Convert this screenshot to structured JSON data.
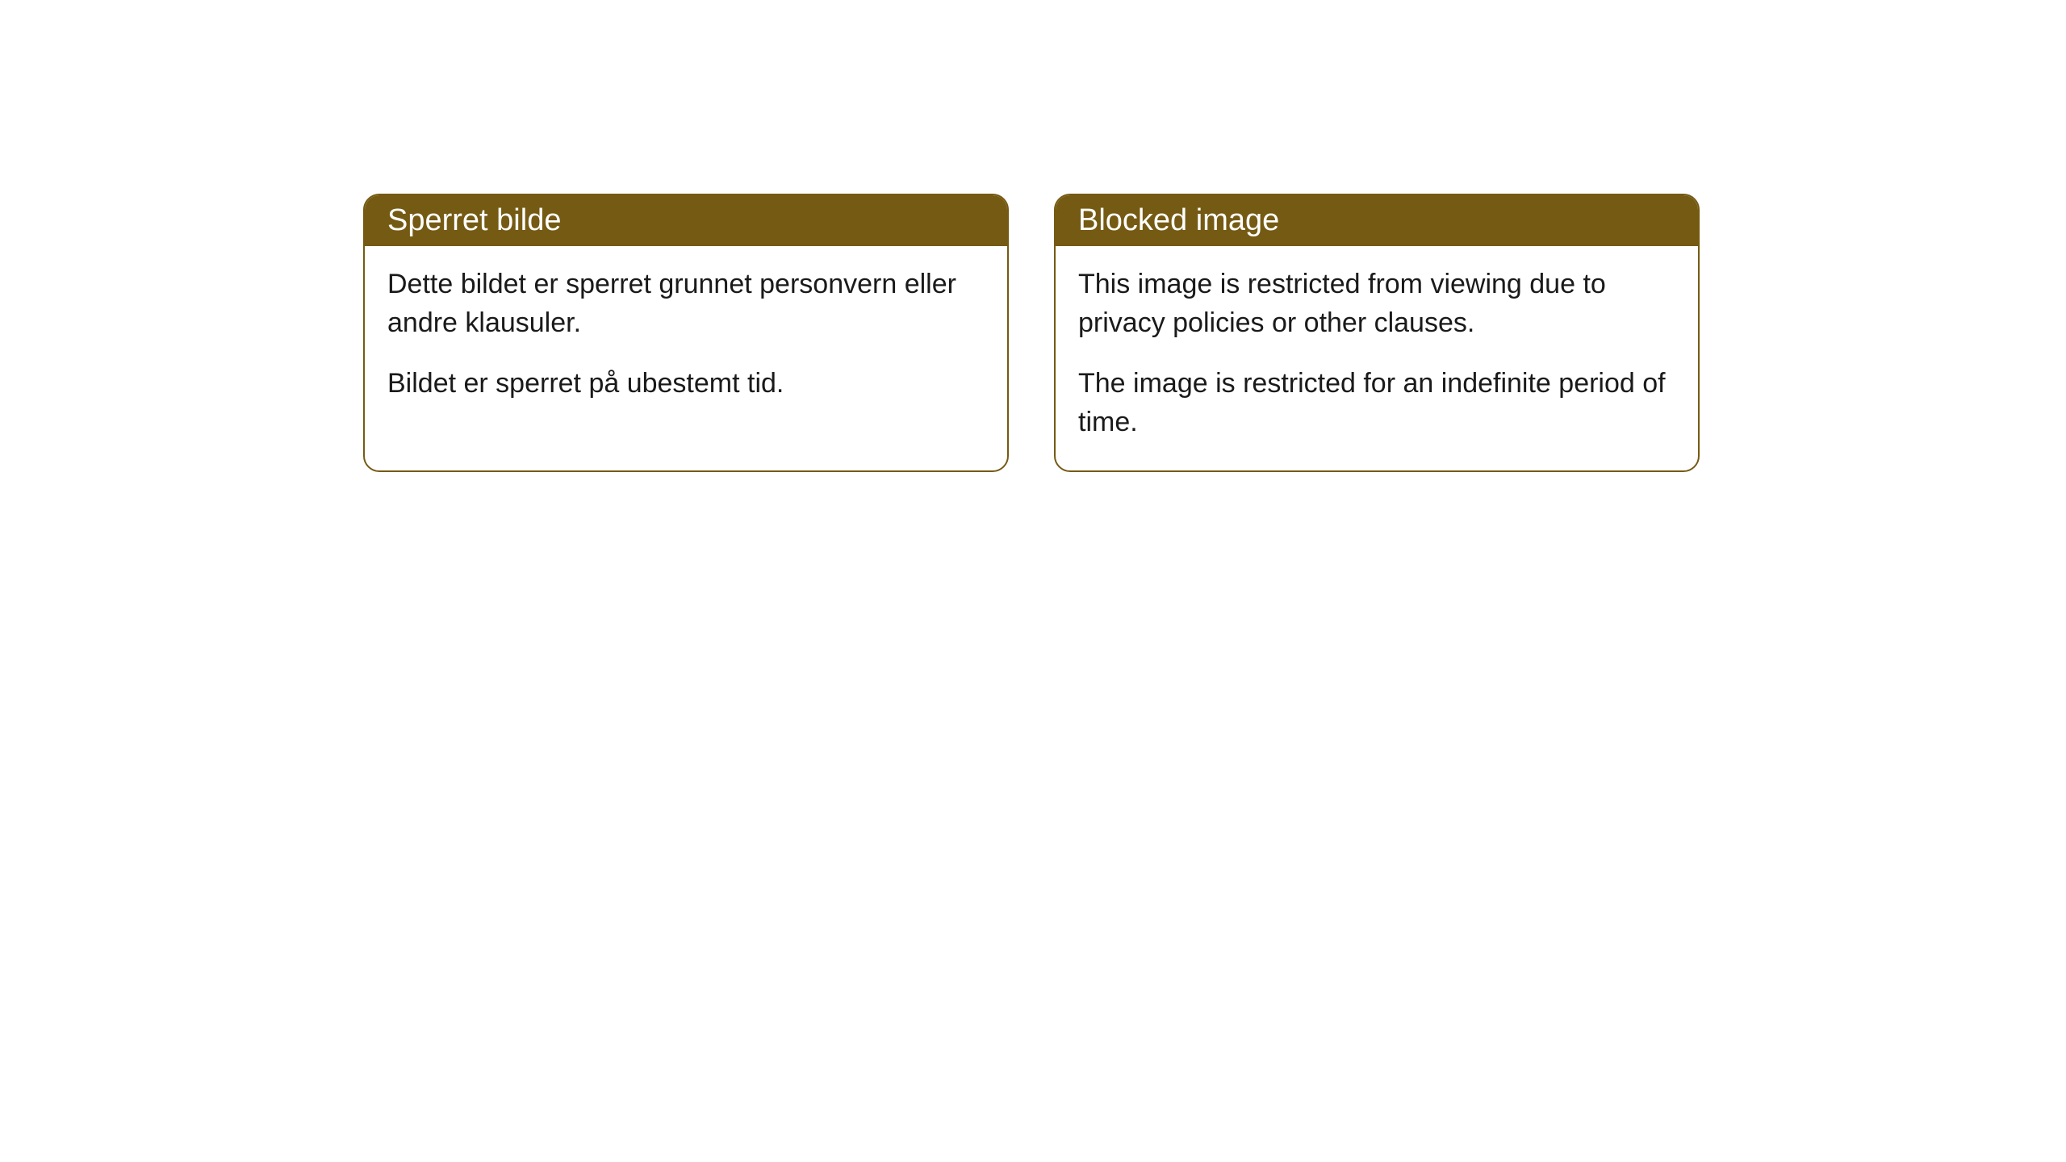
{
  "cards": [
    {
      "title": "Sperret bilde",
      "paragraph1": "Dette bildet er sperret grunnet personvern eller andre klausuler.",
      "paragraph2": "Bildet er sperret på ubestemt tid."
    },
    {
      "title": "Blocked image",
      "paragraph1": "This image is restricted from viewing due to privacy policies or other clauses.",
      "paragraph2": "The image is restricted for an indefinite period of time."
    }
  ],
  "styling": {
    "header_background": "#755a13",
    "header_text_color": "#ffffff",
    "border_color": "#755a13",
    "body_background": "#ffffff",
    "body_text_color": "#1a1a1a",
    "border_radius": 20,
    "title_fontsize": 38,
    "body_fontsize": 34
  }
}
